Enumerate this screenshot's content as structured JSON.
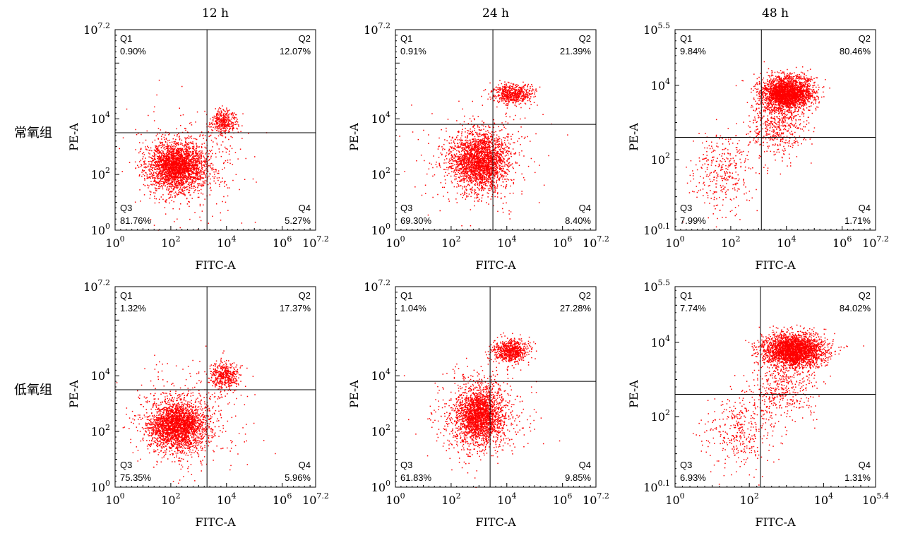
{
  "figure": {
    "columns": [
      "12 h",
      "24 h",
      "48 h"
    ],
    "rows": [
      "常氧组",
      "低氧组"
    ],
    "xlabel": "FITC-A",
    "ylabel": "PE-A",
    "colors": {
      "dots": "#ff0000",
      "axes": "#000000"
    }
  },
  "chart_data": [
    {
      "type": "scatter",
      "row": "常氧组",
      "column": "12 h",
      "xlabel": "FITC-A",
      "ylabel": "PE-A",
      "x_scale": "log10",
      "y_scale": "log10",
      "x_ticks": [
        "10^0",
        "10^2",
        "10^4",
        "10^6",
        "10^7.2"
      ],
      "y_ticks": [
        "10^0",
        "10^2",
        "10^4",
        "10^7.2"
      ],
      "xlim_log": [
        0,
        7.2
      ],
      "ylim_log": [
        0,
        7.2
      ],
      "gate_log": {
        "x": 3.3,
        "y": 3.5
      },
      "quadrants": {
        "Q1": "0.90%",
        "Q2": "12.07%",
        "Q3": "81.76%",
        "Q4": "5.27%"
      },
      "clusters": [
        {
          "x": 2.2,
          "y": 2.3,
          "sx": 0.5,
          "sy": 0.42,
          "n": 2400
        },
        {
          "x": 3.9,
          "y": 3.9,
          "sx": 0.22,
          "sy": 0.22,
          "n": 350
        },
        {
          "x": 2.6,
          "y": 2.4,
          "sx": 1.0,
          "sy": 0.9,
          "n": 500
        }
      ]
    },
    {
      "type": "scatter",
      "row": "常氧组",
      "column": "24 h",
      "xlabel": "FITC-A",
      "ylabel": "PE-A",
      "x_scale": "log10",
      "y_scale": "log10",
      "x_ticks": [
        "10^0",
        "10^2",
        "10^4",
        "10^6",
        "10^7.2"
      ],
      "y_ticks": [
        "10^0",
        "10^2",
        "10^4",
        "10^7.2"
      ],
      "xlim_log": [
        0,
        7.2
      ],
      "ylim_log": [
        0,
        7.2
      ],
      "gate_log": {
        "x": 3.5,
        "y": 3.8
      },
      "quadrants": {
        "Q1": "0.91%",
        "Q2": "21.39%",
        "Q3": "69.30%",
        "Q4": "8.40%"
      },
      "clusters": [
        {
          "x": 3.0,
          "y": 2.5,
          "sx": 0.5,
          "sy": 0.5,
          "n": 2200
        },
        {
          "x": 4.2,
          "y": 4.9,
          "sx": 0.35,
          "sy": 0.18,
          "n": 600
        },
        {
          "x": 3.0,
          "y": 2.6,
          "sx": 1.0,
          "sy": 0.9,
          "n": 450
        }
      ]
    },
    {
      "type": "scatter",
      "row": "常氧组",
      "column": "48 h",
      "xlabel": "FITC-A",
      "ylabel": "PE-A",
      "x_scale": "log10",
      "y_scale": "log10",
      "x_ticks": [
        "10^0",
        "10^2",
        "10^4",
        "10^6",
        "10^7.2"
      ],
      "y_ticks": [
        "10^0.1",
        "10^2",
        "10^4",
        "10^5.5"
      ],
      "xlim_log": [
        0,
        7.2
      ],
      "ylim_log": [
        0.1,
        5.5
      ],
      "gate_log": {
        "x": 3.1,
        "y": 2.6
      },
      "quadrants": {
        "Q1": "9.84%",
        "Q2": "80.46%",
        "Q3": "7.99%",
        "Q4": "1.71%"
      },
      "clusters": [
        {
          "x": 4.0,
          "y": 3.8,
          "sx": 0.45,
          "sy": 0.22,
          "n": 2600
        },
        {
          "x": 1.7,
          "y": 1.7,
          "sx": 0.6,
          "sy": 0.55,
          "n": 350
        },
        {
          "x": 3.7,
          "y": 2.9,
          "sx": 0.5,
          "sy": 0.4,
          "n": 500
        }
      ]
    },
    {
      "type": "scatter",
      "row": "低氧组",
      "column": "12 h",
      "xlabel": "FITC-A",
      "ylabel": "PE-A",
      "x_scale": "log10",
      "y_scale": "log10",
      "x_ticks": [
        "10^0",
        "10^2",
        "10^4",
        "10^6",
        "10^7.2"
      ],
      "y_ticks": [
        "10^0",
        "10^2",
        "10^4",
        "10^7.2"
      ],
      "xlim_log": [
        0,
        7.2
      ],
      "ylim_log": [
        0,
        7.2
      ],
      "gate_log": {
        "x": 3.3,
        "y": 3.5
      },
      "quadrants": {
        "Q1": "1.32%",
        "Q2": "17.37%",
        "Q3": "75.35%",
        "Q4": "5.96%"
      },
      "clusters": [
        {
          "x": 2.2,
          "y": 2.2,
          "sx": 0.5,
          "sy": 0.45,
          "n": 2300
        },
        {
          "x": 3.9,
          "y": 4.0,
          "sx": 0.25,
          "sy": 0.25,
          "n": 450
        },
        {
          "x": 2.6,
          "y": 2.4,
          "sx": 1.0,
          "sy": 0.9,
          "n": 500
        }
      ]
    },
    {
      "type": "scatter",
      "row": "低氧组",
      "column": "24 h",
      "xlabel": "FITC-A",
      "ylabel": "PE-A",
      "x_scale": "log10",
      "y_scale": "log10",
      "x_ticks": [
        "10^0",
        "10^2",
        "10^4",
        "10^6",
        "10^7.2"
      ],
      "y_ticks": [
        "10^0",
        "10^2",
        "10^4",
        "10^7.2"
      ],
      "xlim_log": [
        0,
        7.2
      ],
      "ylim_log": [
        0,
        7.2
      ],
      "gate_log": {
        "x": 3.4,
        "y": 3.8
      },
      "quadrants": {
        "Q1": "1.04%",
        "Q2": "27.28%",
        "Q3": "61.83%",
        "Q4": "9.85%"
      },
      "clusters": [
        {
          "x": 3.0,
          "y": 2.6,
          "sx": 0.42,
          "sy": 0.5,
          "n": 2100
        },
        {
          "x": 4.1,
          "y": 4.9,
          "sx": 0.3,
          "sy": 0.2,
          "n": 700
        },
        {
          "x": 3.0,
          "y": 2.6,
          "sx": 1.0,
          "sy": 0.9,
          "n": 450
        }
      ]
    },
    {
      "type": "scatter",
      "row": "低氧组",
      "column": "48 h",
      "xlabel": "FITC-A",
      "ylabel": "PE-A",
      "x_scale": "log10",
      "y_scale": "log10",
      "x_ticks": [
        "10^0",
        "10^2",
        "10^4",
        "10^5.4"
      ],
      "y_ticks": [
        "10^0.1",
        "10^2",
        "10^4",
        "10^5.5"
      ],
      "xlim_log": [
        0,
        5.4
      ],
      "ylim_log": [
        0.1,
        5.5
      ],
      "gate_log": {
        "x": 2.3,
        "y": 2.6
      },
      "quadrants": {
        "Q1": "7.74%",
        "Q2": "84.02%",
        "Q3": "6.93%",
        "Q4": "1.31%"
      },
      "clusters": [
        {
          "x": 3.2,
          "y": 3.8,
          "sx": 0.4,
          "sy": 0.22,
          "n": 2700
        },
        {
          "x": 1.7,
          "y": 1.6,
          "sx": 0.45,
          "sy": 0.5,
          "n": 350
        },
        {
          "x": 2.9,
          "y": 2.8,
          "sx": 0.45,
          "sy": 0.45,
          "n": 450
        }
      ]
    }
  ]
}
